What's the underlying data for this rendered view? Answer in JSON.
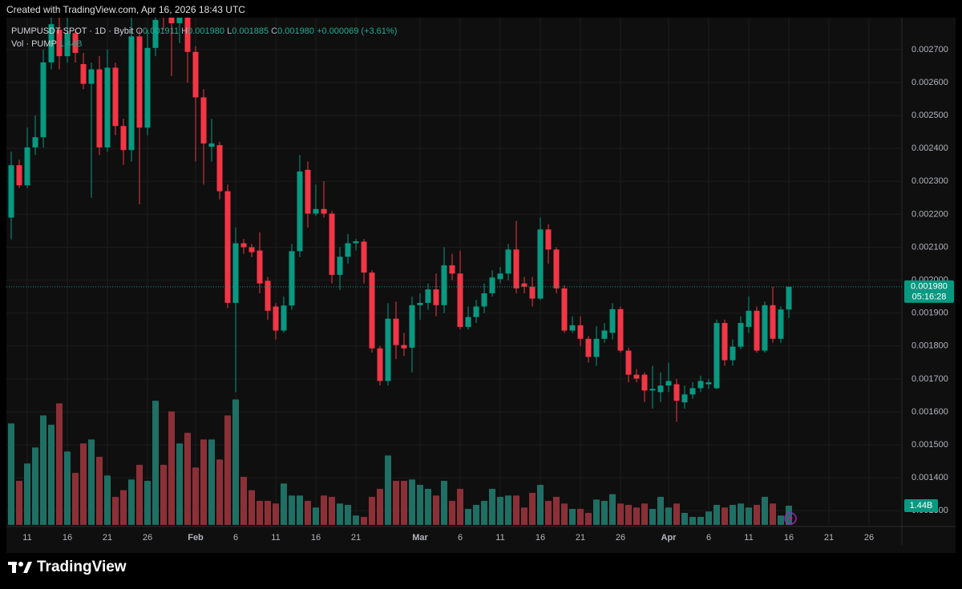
{
  "watermark": "Created with TradingView.com, Apr 16, 2026 18:43 UTC",
  "brand": "TradingView",
  "chart_data": {
    "type": "candlestick",
    "symbol": "PUMPUSDT SPOT · 1D · Bybit",
    "ohlc_legend": [
      {
        "key": "O",
        "value": "0.001911"
      },
      {
        "key": "H",
        "value": "0.001980"
      },
      {
        "key": "L",
        "value": "0.001885"
      },
      {
        "key": "C",
        "value": "0.001980"
      }
    ],
    "change": "+0.000069 (+3.61%)",
    "volume_legend": {
      "name": "Vol · PUMP",
      "value": "1.44B"
    },
    "up_color": "#089981",
    "down_color": "#f23645",
    "volume_up_color": "#1f6f64",
    "volume_down_color": "#8c3037",
    "grid": true,
    "categories": [
      null,
      null,
      "11",
      null,
      null,
      null,
      null,
      "16",
      null,
      null,
      null,
      null,
      "21",
      null,
      null,
      null,
      null,
      "26",
      null,
      null,
      null,
      null,
      null,
      "Feb",
      null,
      null,
      null,
      null,
      "6",
      null,
      null,
      null,
      null,
      "11",
      null,
      null,
      null,
      null,
      "16",
      null,
      null,
      null,
      null,
      "21",
      null,
      null,
      null,
      null,
      null,
      null,
      null,
      "Mar",
      null,
      null,
      null,
      null,
      "6",
      null,
      null,
      null,
      null,
      "11",
      null,
      null,
      null,
      null,
      "16",
      null,
      null,
      null,
      null,
      "21",
      null,
      null,
      null,
      null,
      "26",
      null,
      null,
      null,
      null,
      null,
      "Apr",
      null,
      null,
      null,
      null,
      "6",
      null,
      null,
      null,
      null,
      "11",
      null,
      null,
      null,
      null,
      "16",
      null,
      null,
      null,
      null,
      "21",
      null,
      null,
      null,
      null,
      "26"
    ],
    "open": [
      0.00219,
      0.002349,
      0.002288,
      0.002403,
      0.002434,
      0.002661,
      0.00276,
      0.00268,
      0.00275,
      0.002656,
      0.002596,
      0.00264,
      0.002403,
      0.002645,
      0.002468,
      0.002395,
      0.00274,
      0.002463,
      0.002705,
      0.00285,
      0.00282,
      0.00278,
      0.00282,
      0.002693,
      0.002555,
      0.002405,
      0.00241,
      0.00227,
      0.001931,
      0.002112,
      0.0021,
      0.00209,
      0.001998,
      0.00192,
      0.001847,
      0.001923,
      0.002088,
      0.002335,
      0.002202,
      0.002216,
      0.002202,
      0.002016,
      0.002071,
      0.002112,
      0.002117,
      0.002023,
      0.001793,
      0.001694,
      0.001883,
      0.001803,
      0.001795,
      0.001924,
      0.001931,
      0.001972,
      0.001924,
      0.002045,
      0.00202,
      0.001858,
      0.001888,
      0.00192,
      0.00196,
      0.002003,
      0.00202,
      0.002093,
      0.00199,
      0.00198,
      0.001944,
      0.002154,
      0.002093,
      0.001975,
      0.001847,
      0.001863,
      0.001822,
      0.001767,
      0.001822,
      0.00184,
      0.001912,
      0.001786,
      0.001713,
      0.001713,
      0.001665,
      0.00166,
      0.00168,
      0.001684,
      0.001629,
      0.001653,
      0.001672,
      0.001684,
      0.001672,
      0.00187,
      0.001757,
      0.001798,
      0.001858,
      0.001907,
      0.001786,
      0.001924,
      0.001822,
      0.001911,
      null,
      null,
      null,
      null,
      null,
      null,
      null,
      null,
      null,
      null
    ],
    "high": [
      0.00239,
      0.002366,
      0.002463,
      0.0025,
      0.0027,
      0.002797,
      0.002797,
      0.002797,
      0.00276,
      0.00269,
      0.00266,
      0.00268,
      0.0027,
      0.00266,
      0.00249,
      0.002797,
      0.00276,
      0.00276,
      0.002797,
      0.00288,
      0.00285,
      0.00284,
      0.00285,
      0.00271,
      0.00258,
      0.00249,
      0.00242,
      0.00229,
      0.00216,
      0.002125,
      0.00211,
      0.002145,
      0.00201,
      0.00193,
      0.00195,
      0.00211,
      0.00238,
      0.00236,
      0.00229,
      0.0023,
      0.00221,
      0.0021,
      0.00214,
      0.002125,
      0.002125,
      0.00203,
      0.0018,
      0.00193,
      0.001935,
      0.00184,
      0.00195,
      0.00196,
      0.00199,
      0.00202,
      0.0021,
      0.00208,
      0.00209,
      0.00192,
      0.00194,
      0.00199,
      0.00203,
      0.00204,
      0.00211,
      0.00218,
      0.00201,
      0.00201,
      0.00219,
      0.00217,
      0.0021,
      0.001985,
      0.00189,
      0.00189,
      0.00183,
      0.00186,
      0.00187,
      0.00193,
      0.00192,
      0.001795,
      0.00173,
      0.00172,
      0.00174,
      0.00172,
      0.00175,
      0.0017,
      0.00168,
      0.00169,
      0.00171,
      0.0017,
      0.00188,
      0.00188,
      0.00182,
      0.00189,
      0.00195,
      0.00192,
      0.001935,
      0.00198,
      0.00192,
      0.00198,
      null,
      null,
      null,
      null,
      null,
      null,
      null,
      null,
      null,
      null
    ],
    "low": [
      0.002124,
      0.00228,
      0.00228,
      0.00238,
      0.002403,
      0.00264,
      0.00264,
      0.00266,
      0.00266,
      0.00258,
      0.00225,
      0.00238,
      0.00239,
      0.00244,
      0.00235,
      0.00236,
      0.00223,
      0.00244,
      0.00268,
      0.00276,
      0.00262,
      0.00272,
      0.0026,
      0.00236,
      0.00229,
      0.00236,
      0.002245,
      0.001915,
      0.00166,
      0.00208,
      0.00207,
      0.00196,
      0.00188,
      0.00182,
      0.00184,
      0.00191,
      0.00207,
      0.00216,
      0.002195,
      0.00219,
      0.00199,
      0.00197,
      0.00205,
      0.00209,
      0.00199,
      0.00178,
      0.00168,
      0.00168,
      0.00176,
      0.00177,
      0.00172,
      0.00188,
      0.00191,
      0.00189,
      0.0019,
      0.002,
      0.00185,
      0.00185,
      0.00187,
      0.0019,
      0.00195,
      0.00199,
      0.002,
      0.00196,
      0.00196,
      0.00192,
      0.00194,
      0.00205,
      0.00196,
      0.00184,
      0.00184,
      0.0018,
      0.00175,
      0.00174,
      0.00181,
      0.00182,
      0.00178,
      0.00169,
      0.00169,
      0.00163,
      0.00161,
      0.00163,
      0.00166,
      0.00157,
      0.00161,
      0.00164,
      0.00166,
      0.00167,
      0.00167,
      0.00174,
      0.00174,
      0.00179,
      0.00184,
      0.00178,
      0.00178,
      0.00181,
      0.00181,
      0.001885,
      null,
      null,
      null,
      null,
      null,
      null,
      null,
      null,
      null,
      null
    ],
    "close": [
      0.002349,
      0.002288,
      0.002403,
      0.002434,
      0.002661,
      0.002777,
      0.00268,
      0.00275,
      0.00269,
      0.002596,
      0.00264,
      0.002403,
      0.002645,
      0.002468,
      0.002395,
      0.00274,
      0.002463,
      0.002705,
      0.00279,
      0.0028,
      0.00278,
      0.00283,
      0.002693,
      0.002555,
      0.002415,
      0.002415,
      0.00227,
      0.001931,
      0.002112,
      0.0021,
      0.002085,
      0.00199,
      0.001907,
      0.001847,
      0.001923,
      0.002088,
      0.00233,
      0.002202,
      0.002216,
      0.002202,
      0.002016,
      0.002071,
      0.002112,
      0.002118,
      0.002023,
      0.001793,
      0.001694,
      0.001883,
      0.001803,
      0.001793,
      0.001924,
      0.001931,
      0.001972,
      0.001924,
      0.002045,
      0.00202,
      0.001858,
      0.001888,
      0.00192,
      0.00196,
      0.002008,
      0.00202,
      0.002093,
      0.001975,
      0.00198,
      0.001944,
      0.002154,
      0.002093,
      0.001975,
      0.001847,
      0.001863,
      0.001822,
      0.001767,
      0.001822,
      0.001847,
      0.001912,
      0.001786,
      0.001713,
      0.001701,
      0.001665,
      0.00167,
      0.00168,
      0.001694,
      0.001634,
      0.001653,
      0.001672,
      0.001694,
      0.00169,
      0.00187,
      0.001757,
      0.001798,
      0.00187,
      0.001907,
      0.001786,
      0.001924,
      0.001822,
      0.001911,
      0.00198,
      null,
      null,
      null,
      null,
      null,
      null,
      null,
      null,
      null,
      null
    ],
    "volume": [
      7600000000,
      3300000000,
      4600000000,
      5800000000,
      8200000000,
      7500000000,
      9100000000,
      5500000000,
      3900000000,
      6100000000,
      6400000000,
      5100000000,
      3700000000,
      2100000000,
      2600000000,
      3400000000,
      4500000000,
      3300000000,
      9300000000,
      4500000000,
      8500000000,
      6100000000,
      6900000000,
      4300000000,
      6400000000,
      6400000000,
      4900000000,
      8200000000,
      9400000000,
      3600000000,
      2600000000,
      1800000000,
      1800000000,
      1600000000,
      3100000000,
      2200000000,
      2200000000,
      1800000000,
      1300000000,
      2200000000,
      2100000000,
      1600000000,
      1500000000,
      700000000,
      600000000,
      2100000000,
      2700000000,
      5200000000,
      3300000000,
      3300000000,
      3400000000,
      3000000000,
      2700000000,
      2200000000,
      3300000000,
      1800000000,
      2700000000,
      1200000000,
      1500000000,
      1800000000,
      2700000000,
      2100000000,
      2200000000,
      2200000000,
      1300000000,
      2400000000,
      3000000000,
      1800000000,
      2100000000,
      1600000000,
      1200000000,
      1200000000,
      900000000,
      1900000000,
      1800000000,
      2300000000,
      1600000000,
      1500000000,
      1300000000,
      1600000000,
      1200000000,
      2100000000,
      1300000000,
      1600000000,
      900000000,
      600000000,
      600000000,
      1000000000,
      1500000000,
      1300000000,
      1500000000,
      1600000000,
      1300000000,
      1500000000,
      2100000000,
      1600000000,
      700000000,
      1440000000,
      null,
      null,
      null,
      null,
      null,
      null,
      null,
      null,
      null,
      null
    ],
    "ylim": [
      0.001257,
      0.002797
    ],
    "yticks": [
      {
        "value": 0.0013,
        "label": "0.001300"
      },
      {
        "value": 0.0014,
        "label": "0.001400"
      },
      {
        "value": 0.0015,
        "label": "0.001500"
      },
      {
        "value": 0.0016,
        "label": "0.001600"
      },
      {
        "value": 0.0017,
        "label": "0.001700"
      },
      {
        "value": 0.0018,
        "label": "0.001800"
      },
      {
        "value": 0.0019,
        "label": "0.001900"
      },
      {
        "value": 0.002,
        "label": "0.002000"
      },
      {
        "value": 0.0021,
        "label": "0.002100"
      },
      {
        "value": 0.0022,
        "label": "0.002200"
      },
      {
        "value": 0.0023,
        "label": "0.002300"
      },
      {
        "value": 0.0024,
        "label": "0.002400"
      },
      {
        "value": 0.0025,
        "label": "0.002500"
      },
      {
        "value": 0.0026,
        "label": "0.002600"
      },
      {
        "value": 0.0027,
        "label": "0.002700"
      }
    ],
    "volume_ylim": [
      0,
      38000000000
    ],
    "last_price": {
      "value": 0.00198,
      "label": "0.001980"
    },
    "countdown": "05:16:28",
    "last_volume": {
      "value": 1440000000,
      "label": "1.44B"
    }
  }
}
